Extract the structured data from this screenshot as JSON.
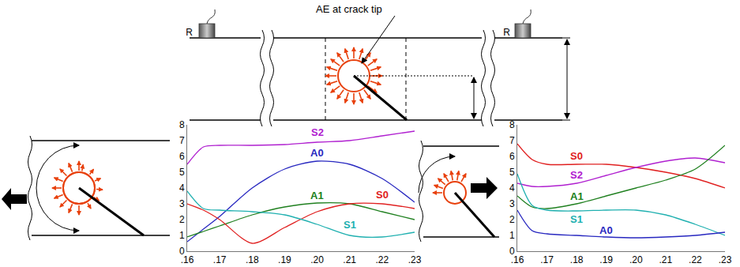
{
  "diagram": {
    "sensor_label": "R",
    "source_label": "AE at crack tip"
  },
  "chart_data": [
    {
      "type": "line",
      "x": [
        0.16,
        0.165,
        0.17,
        0.18,
        0.19,
        0.2,
        0.21,
        0.22,
        0.23
      ],
      "xlim": [
        0.16,
        0.23
      ],
      "xticks": [
        {
          "value": 0.16,
          "label": ".16"
        },
        {
          "value": 0.17,
          "label": ".17"
        },
        {
          "value": 0.18,
          "label": ".18"
        },
        {
          "value": 0.19,
          "label": ".19"
        },
        {
          "value": 0.2,
          "label": ".20"
        },
        {
          "value": 0.21,
          "label": ".21"
        },
        {
          "value": 0.22,
          "label": ".22"
        },
        {
          "value": 0.23,
          "label": ".23"
        }
      ],
      "ylim": [
        0,
        8
      ],
      "yticks": [
        0,
        1,
        2,
        3,
        4,
        5,
        6,
        7,
        8
      ],
      "grid": false,
      "series": [
        {
          "name": "S2",
          "color": "#b020d0",
          "values": [
            5.5,
            6.6,
            6.7,
            6.7,
            6.75,
            6.9,
            7.0,
            7.3,
            7.6
          ]
        },
        {
          "name": "A0",
          "color": "#2828c0",
          "values": [
            0.6,
            1.4,
            2.2,
            4.0,
            5.2,
            5.7,
            5.5,
            4.6,
            3.1
          ]
        },
        {
          "name": "A1",
          "color": "#208020",
          "values": [
            0.9,
            1.25,
            1.6,
            2.3,
            2.8,
            3.05,
            3.0,
            2.5,
            2.0
          ]
        },
        {
          "name": "S0",
          "color": "#e02020",
          "values": [
            3.0,
            2.6,
            2.0,
            0.5,
            1.5,
            2.5,
            3.0,
            3.0,
            2.7
          ]
        },
        {
          "name": "S1",
          "color": "#20b0b0",
          "values": [
            3.8,
            2.7,
            2.6,
            2.5,
            2.3,
            1.7,
            1.0,
            0.9,
            1.2
          ]
        }
      ]
    },
    {
      "type": "line",
      "x": [
        0.16,
        0.165,
        0.17,
        0.18,
        0.19,
        0.2,
        0.21,
        0.22,
        0.23
      ],
      "xlim": [
        0.16,
        0.23
      ],
      "xticks": [
        {
          "value": 0.16,
          "label": ".16"
        },
        {
          "value": 0.17,
          "label": ".17"
        },
        {
          "value": 0.18,
          "label": ".18"
        },
        {
          "value": 0.19,
          "label": ".19"
        },
        {
          "value": 0.2,
          "label": ".20"
        },
        {
          "value": 0.21,
          "label": ".21"
        },
        {
          "value": 0.22,
          "label": ".22"
        },
        {
          "value": 0.23,
          "label": ".23"
        }
      ],
      "ylim": [
        0,
        8
      ],
      "yticks": [
        0,
        1,
        2,
        3,
        4,
        5,
        6,
        7,
        8
      ],
      "grid": false,
      "series": [
        {
          "name": "S0",
          "color": "#e02020",
          "values": [
            6.8,
            5.8,
            5.5,
            5.5,
            5.5,
            5.3,
            5.0,
            4.6,
            4.0
          ]
        },
        {
          "name": "S2",
          "color": "#b020d0",
          "values": [
            4.3,
            4.1,
            4.1,
            4.3,
            4.8,
            5.3,
            5.7,
            5.9,
            5.6
          ]
        },
        {
          "name": "A1",
          "color": "#208020",
          "values": [
            3.5,
            2.8,
            2.7,
            3.0,
            3.5,
            4.0,
            4.5,
            5.2,
            6.7
          ]
        },
        {
          "name": "S1",
          "color": "#20b0b0",
          "values": [
            4.9,
            2.9,
            2.6,
            2.55,
            2.6,
            2.6,
            2.3,
            1.7,
            1.0
          ]
        },
        {
          "name": "A0",
          "color": "#2828c0",
          "values": [
            2.6,
            1.3,
            1.1,
            1.0,
            0.9,
            0.85,
            0.9,
            1.0,
            1.2
          ]
        }
      ]
    }
  ]
}
